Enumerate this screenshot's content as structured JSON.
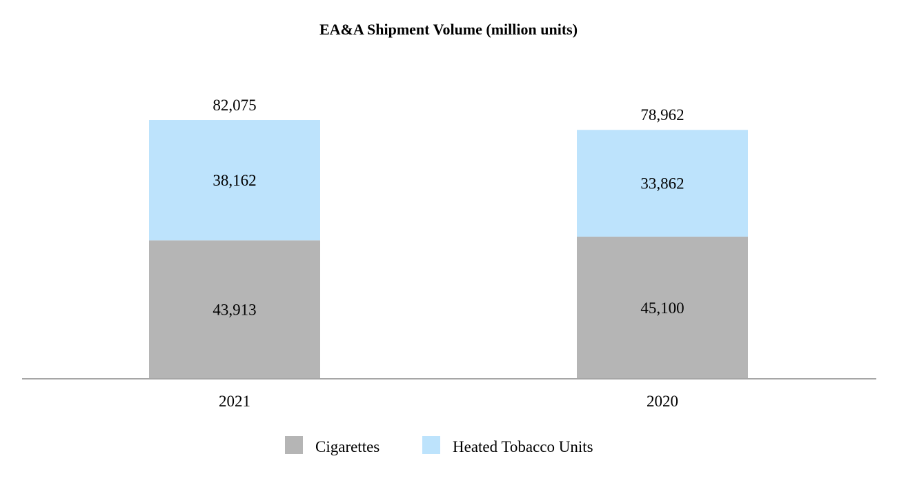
{
  "chart_data": {
    "type": "bar",
    "stacked": true,
    "title": "EA&A Shipment Volume (million units)",
    "xlabel": "",
    "ylabel": "",
    "categories": [
      "2021",
      "2020"
    ],
    "series": [
      {
        "name": "Cigarettes",
        "values": [
          43913,
          45100
        ],
        "labels": [
          "43,913",
          "45,100"
        ],
        "color": "#b5b5b5"
      },
      {
        "name": "Heated Tobacco Units",
        "values": [
          38162,
          33862
        ],
        "labels": [
          "38,162",
          "33,862"
        ],
        "color": "#bde3fc"
      }
    ],
    "totals": [
      82075,
      78962
    ],
    "total_labels": [
      "82,075",
      "78,962"
    ],
    "ylim": [
      0,
      100000
    ],
    "grid": false,
    "legend": "bottom-center",
    "axis_color": "#a6a6a6"
  }
}
